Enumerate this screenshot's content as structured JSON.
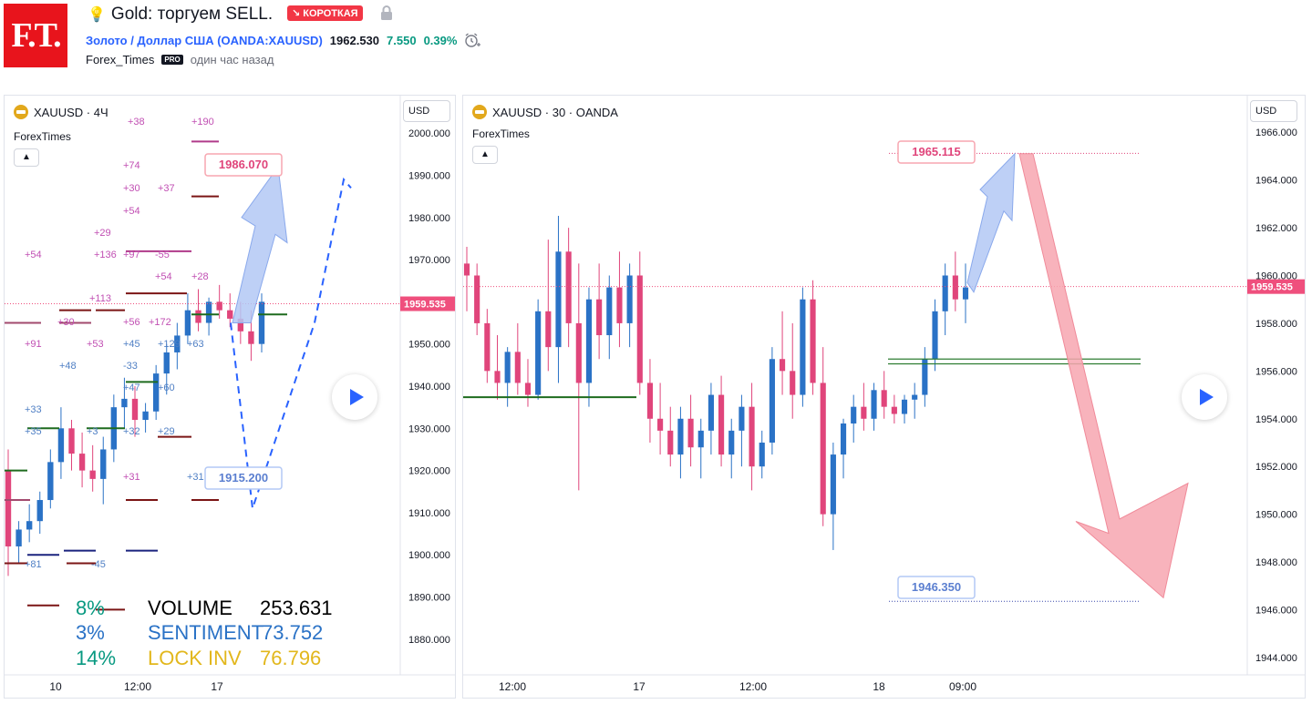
{
  "header": {
    "logo_text": "F.T.",
    "title": "Gold: торгуем SELL.",
    "badge": "↘ КОРОТКАЯ",
    "symbol_name": "Золото / Доллар США (OANDA:XAUUSD)",
    "last_price": "1962.530",
    "change_abs": "7.550",
    "change_pct": "0.39%",
    "author": "Forex_Times",
    "author_badge": "PRO",
    "time_ago": "один час назад"
  },
  "colors": {
    "up": "#2a72c6",
    "down": "#e0457b",
    "accent": "#2962ff",
    "price_label": "#ef4f7d",
    "target_up": "#b3c8f5",
    "target_down": "#f7a6b0"
  },
  "left_panel": {
    "legend": "XAUUSD · 4Ч",
    "sub_legend": "ForexTimes",
    "currency_button": "USD",
    "current_price_label": "1959.535",
    "callout_top": "1986.070",
    "callout_bottom": "1915.200",
    "stats": [
      {
        "pct": "8%",
        "label": "VOLUME",
        "value": "253.631"
      },
      {
        "pct": "3%",
        "label": "SENTIMENT",
        "value": "73.752"
      },
      {
        "pct": "14%",
        "label": "LOCK INV",
        "value": "76.796"
      }
    ],
    "level_labels": [
      "+38",
      "+190",
      "+74",
      "+30",
      "+37",
      "+54",
      "+29",
      "+54",
      "+136",
      "+97",
      "-55",
      "+54",
      "+28",
      "+113",
      "+172",
      "+30",
      "+56",
      "+91",
      "+53",
      "+45",
      "+129",
      "+63",
      "+48",
      "-33",
      "+47",
      "+60",
      "+33",
      "+35",
      "+3",
      "+32",
      "+29",
      "+31",
      "+31",
      "+81",
      "-45"
    ]
  },
  "right_panel": {
    "legend": "XAUUSD · 30 · OANDA",
    "sub_legend": "ForexTimes",
    "currency_button": "USD",
    "current_price_label": "1959.535",
    "callout_top": "1965.115",
    "callout_bottom": "1946.350"
  },
  "chart_data": [
    {
      "type": "candlestick",
      "title": "XAUUSD · 4Ч",
      "ylim": [
        1875,
        2005
      ],
      "y_ticks": [
        1880,
        1890,
        1900,
        1910,
        1920,
        1930,
        1940,
        1950,
        1960,
        1970,
        1980,
        1990,
        2000
      ],
      "x_tick_labels": [
        "10",
        "12:00",
        "17"
      ],
      "current_price": 1959.535,
      "annotations": [
        {
          "text": "1986.070",
          "value": 1986.07
        },
        {
          "text": "1915.200",
          "value": 1915.2
        }
      ],
      "candles": [
        [
          1920,
          1925,
          1895,
          1902
        ],
        [
          1902,
          1908,
          1898,
          1906
        ],
        [
          1906,
          1912,
          1903,
          1908
        ],
        [
          1908,
          1915,
          1905,
          1913
        ],
        [
          1913,
          1925,
          1911,
          1922
        ],
        [
          1922,
          1935,
          1918,
          1930
        ],
        [
          1930,
          1932,
          1920,
          1924
        ],
        [
          1924,
          1929,
          1916,
          1920
        ],
        [
          1920,
          1926,
          1915,
          1918
        ],
        [
          1918,
          1928,
          1912,
          1925
        ],
        [
          1925,
          1938,
          1922,
          1935
        ],
        [
          1935,
          1942,
          1930,
          1937
        ],
        [
          1937,
          1940,
          1928,
          1932
        ],
        [
          1932,
          1936,
          1929,
          1934
        ],
        [
          1934,
          1945,
          1932,
          1943
        ],
        [
          1943,
          1950,
          1938,
          1948
        ],
        [
          1948,
          1955,
          1944,
          1952
        ],
        [
          1952,
          1962,
          1950,
          1958
        ],
        [
          1958,
          1963,
          1953,
          1955
        ],
        [
          1955,
          1961,
          1952,
          1960
        ],
        [
          1960,
          1964,
          1956,
          1958
        ],
        [
          1958,
          1962,
          1954,
          1956
        ],
        [
          1956,
          1960,
          1950,
          1953
        ],
        [
          1953,
          1958,
          1946,
          1950
        ],
        [
          1950,
          1962,
          1948,
          1960
        ]
      ]
    },
    {
      "type": "candlestick",
      "title": "XAUUSD · 30 · OANDA",
      "ylim": [
        1943.5,
        1967.0
      ],
      "y_ticks": [
        1944,
        1946,
        1948,
        1950,
        1952,
        1954,
        1956,
        1958,
        1960,
        1962,
        1964,
        1966
      ],
      "x_tick_labels": [
        "12:00",
        "17",
        "12:00",
        "18",
        "09:00"
      ],
      "current_price": 1959.535,
      "annotations": [
        {
          "text": "1965.115",
          "value": 1965.115
        },
        {
          "text": "1946.350",
          "value": 1946.35
        }
      ],
      "candles": [
        [
          1960.5,
          1961.2,
          1958.5,
          1960.0
        ],
        [
          1960.0,
          1960.5,
          1957.5,
          1958.0
        ],
        [
          1958.0,
          1958.6,
          1955.5,
          1956.0
        ],
        [
          1956.0,
          1957.5,
          1954.8,
          1955.5
        ],
        [
          1955.5,
          1957.0,
          1954.5,
          1956.8
        ],
        [
          1956.8,
          1958.0,
          1955.0,
          1955.5
        ],
        [
          1955.5,
          1956.5,
          1954.5,
          1955.0
        ],
        [
          1955.0,
          1959.0,
          1954.8,
          1958.5
        ],
        [
          1958.5,
          1961.5,
          1956.0,
          1957.0
        ],
        [
          1957.0,
          1962.5,
          1955.5,
          1961.0
        ],
        [
          1961.0,
          1962.0,
          1957.0,
          1958.0
        ],
        [
          1958.0,
          1960.5,
          1951.0,
          1955.5
        ],
        [
          1955.5,
          1959.5,
          1954.5,
          1959.0
        ],
        [
          1959.0,
          1960.5,
          1956.5,
          1957.5
        ],
        [
          1957.5,
          1960.0,
          1956.5,
          1959.5
        ],
        [
          1959.5,
          1961.0,
          1957.0,
          1958.0
        ],
        [
          1958.0,
          1960.5,
          1957.0,
          1960.0
        ],
        [
          1960.0,
          1961.0,
          1955.0,
          1955.5
        ],
        [
          1955.5,
          1956.5,
          1953.0,
          1954.0
        ],
        [
          1954.0,
          1955.5,
          1952.5,
          1953.5
        ],
        [
          1953.5,
          1954.5,
          1952.0,
          1952.5
        ],
        [
          1952.5,
          1954.5,
          1951.5,
          1954.0
        ],
        [
          1954.0,
          1955.0,
          1952.0,
          1952.8
        ],
        [
          1952.8,
          1954.0,
          1951.5,
          1953.5
        ],
        [
          1953.5,
          1955.5,
          1952.5,
          1955.0
        ],
        [
          1955.0,
          1955.8,
          1952.0,
          1952.5
        ],
        [
          1952.5,
          1954.0,
          1951.5,
          1953.5
        ],
        [
          1953.5,
          1955.0,
          1952.0,
          1954.5
        ],
        [
          1954.5,
          1955.5,
          1951.0,
          1952.0
        ],
        [
          1952.0,
          1953.5,
          1951.5,
          1953.0
        ],
        [
          1953.0,
          1957.0,
          1952.5,
          1956.5
        ],
        [
          1956.5,
          1958.5,
          1955.0,
          1956.0
        ],
        [
          1956.0,
          1958.0,
          1954.0,
          1955.0
        ],
        [
          1955.0,
          1959.5,
          1954.5,
          1959.0
        ],
        [
          1959.0,
          1959.8,
          1955.0,
          1955.5
        ],
        [
          1955.5,
          1957.0,
          1949.5,
          1950.0
        ],
        [
          1950.0,
          1953.0,
          1948.5,
          1952.5
        ],
        [
          1952.5,
          1954.0,
          1951.5,
          1953.8
        ],
        [
          1953.8,
          1955.0,
          1953.0,
          1954.5
        ],
        [
          1954.5,
          1955.5,
          1953.5,
          1954.0
        ],
        [
          1954.0,
          1955.5,
          1953.5,
          1955.2
        ],
        [
          1955.2,
          1956.0,
          1954.0,
          1954.5
        ],
        [
          1954.5,
          1955.0,
          1953.8,
          1954.2
        ],
        [
          1954.2,
          1955.0,
          1953.8,
          1954.8
        ],
        [
          1954.8,
          1955.5,
          1954.0,
          1955.0
        ],
        [
          1955.0,
          1957.0,
          1954.5,
          1956.5
        ],
        [
          1956.5,
          1959.0,
          1956.0,
          1958.5
        ],
        [
          1958.5,
          1960.5,
          1957.5,
          1960.0
        ],
        [
          1960.0,
          1961.0,
          1958.5,
          1959.0
        ],
        [
          1959.0,
          1960.5,
          1958.0,
          1959.5
        ]
      ]
    }
  ]
}
